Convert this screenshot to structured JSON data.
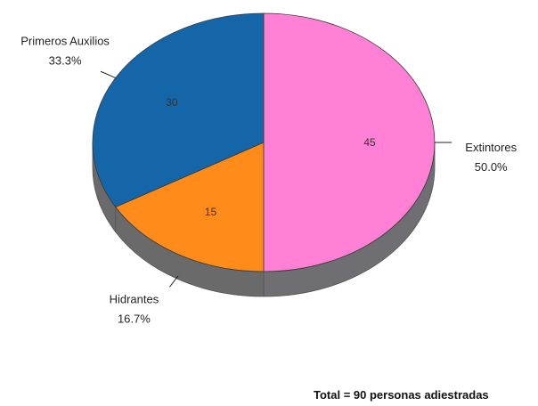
{
  "chart_data": {
    "type": "pie",
    "style": "3d",
    "categories": [
      "Extintores",
      "Hidrantes",
      "Primeros Auxilios"
    ],
    "values": [
      45,
      15,
      30
    ],
    "percent_labels": [
      "50.0%",
      "16.7%",
      "33.3%"
    ],
    "colors": [
      "#ff80d4",
      "#ff8c1a",
      "#1565a9"
    ],
    "side_colors": [
      "#6f6f73",
      "#6a6a6a",
      "#6a6a6a"
    ],
    "legend": "none",
    "footnote": "Total = 90  personas adiestradas"
  }
}
